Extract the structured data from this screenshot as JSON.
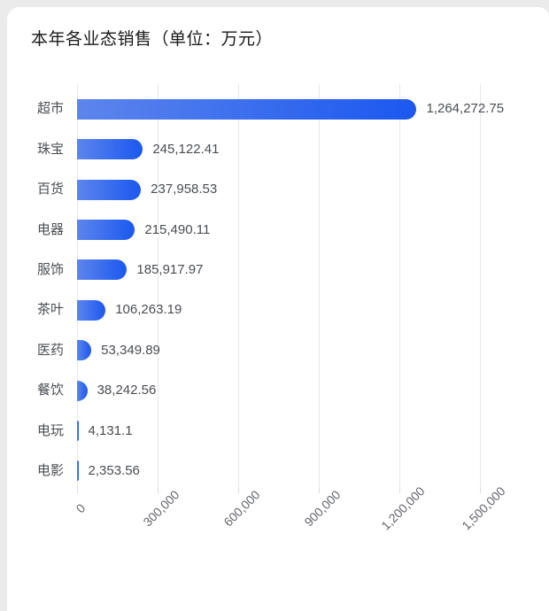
{
  "chart_data": {
    "type": "bar",
    "orientation": "horizontal",
    "title": "本年各业态销售（单位：万元）",
    "xlabel": "",
    "ylabel": "",
    "categories": [
      "超市",
      "珠宝",
      "百货",
      "电器",
      "服饰",
      "茶叶",
      "医药",
      "餐饮",
      "电玩",
      "电影"
    ],
    "values": [
      1264272.75,
      245122.41,
      237958.53,
      215490.11,
      185917.97,
      106263.19,
      53349.89,
      38242.56,
      4131.1,
      2353.56
    ],
    "value_labels": [
      "1,264,272.75",
      "245,122.41",
      "237,958.53",
      "215,490.11",
      "185,917.97",
      "106,263.19",
      "53,349.89",
      "38,242.56",
      "4,131.1",
      "2,353.56"
    ],
    "xlim": [
      0,
      1500000
    ],
    "x_tick_values": [
      0,
      300000,
      600000,
      900000,
      1200000,
      1500000
    ],
    "x_ticks": [
      "0",
      "300,000",
      "600,000",
      "900,000",
      "1,200,000",
      "1,500,000"
    ],
    "grid": true,
    "legend": false,
    "colors": {
      "bar_gradient_start": "#5d85ec",
      "bar_gradient_end": "#1b58f0",
      "gridline": "#e7e7e9",
      "label": "#4a4d52",
      "axis_label": "#64666b",
      "title": "#1a1a1a",
      "card_bg": "#ffffff",
      "page_bg": "#ebebeb"
    }
  }
}
